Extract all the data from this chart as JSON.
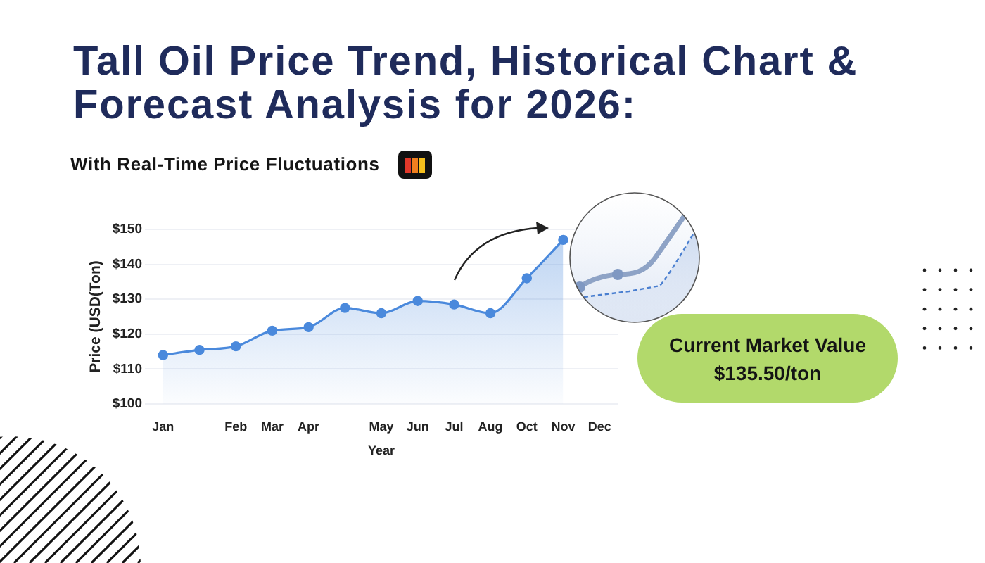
{
  "chart_data": {
    "type": "area",
    "title": "Tall Oil Price Trend, Historical Chart & Forecast Analysis for 2026:",
    "subtitle": "With Real-Time Price Fluctuations",
    "xlabel": "Year",
    "ylabel": "Price (USD(Ton)",
    "categories": [
      "Jan",
      null,
      "Feb",
      "Mar",
      "Apr",
      null,
      "May",
      "Jun",
      "Jul",
      "Aug",
      "Oct",
      "Nov",
      "Dec"
    ],
    "values": [
      114,
      115.5,
      116.5,
      121,
      122,
      127.5,
      126,
      129.5,
      128.5,
      126,
      136,
      147,
      null
    ],
    "color": "#4a89dc",
    "ylim": [
      100,
      150
    ],
    "yticks": [
      {
        "value": 100,
        "label": "$100"
      },
      {
        "value": 110,
        "label": "$110"
      },
      {
        "value": 120,
        "label": "$120"
      },
      {
        "value": 130,
        "label": "$130"
      },
      {
        "value": 140,
        "label": "$140"
      },
      {
        "value": 150,
        "label": "$150"
      }
    ],
    "grid": "y",
    "marker": "circle",
    "annotations": [
      "Current Market Value",
      "$135.50/ton"
    ]
  }
}
